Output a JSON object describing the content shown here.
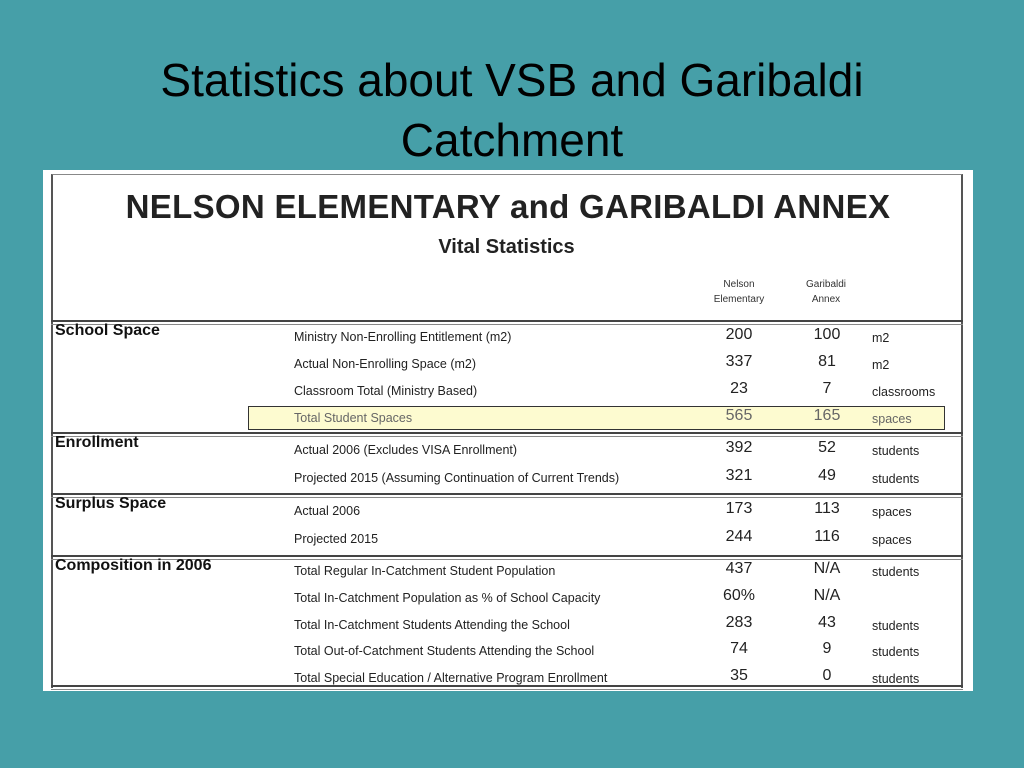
{
  "slide": {
    "title_line1": "Statistics about VSB and Garibaldi",
    "title_line2": "Catchment"
  },
  "document": {
    "title": "NELSON ELEMENTARY and GARIBALDI ANNEX",
    "subtitle": "Vital Statistics",
    "columns": {
      "nelson_line1": "Nelson",
      "nelson_line2": "Elementary",
      "garibaldi_line1": "Garibaldi",
      "garibaldi_line2": "Annex"
    },
    "sections": [
      {
        "label": "School Space",
        "rows": [
          {
            "desc": "Ministry Non-Enrolling Entitlement (m2)",
            "nelson": "200",
            "garibaldi": "100",
            "unit": "m2"
          },
          {
            "desc": "Actual Non-Enrolling Space (m2)",
            "nelson": "337",
            "garibaldi": "81",
            "unit": "m2"
          },
          {
            "desc": "Classroom Total (Ministry Based)",
            "nelson": "23",
            "garibaldi": "7",
            "unit": "classrooms"
          },
          {
            "desc": "Total Student Spaces",
            "nelson": "565",
            "garibaldi": "165",
            "unit": "spaces",
            "highlighted": true
          }
        ]
      },
      {
        "label": "Enrollment",
        "rows": [
          {
            "desc": "Actual 2006 (Excludes VISA Enrollment)",
            "nelson": "392",
            "garibaldi": "52",
            "unit": "students"
          },
          {
            "desc": "Projected 2015 (Assuming Continuation of Current Trends)",
            "nelson": "321",
            "garibaldi": "49",
            "unit": "students"
          }
        ]
      },
      {
        "label": "Surplus Space",
        "rows": [
          {
            "desc": "Actual 2006",
            "nelson": "173",
            "garibaldi": "113",
            "unit": "spaces"
          },
          {
            "desc": "Projected 2015",
            "nelson": "244",
            "garibaldi": "116",
            "unit": "spaces"
          }
        ]
      },
      {
        "label": "Composition in 2006",
        "rows": [
          {
            "desc": "Total Regular In-Catchment Student Population",
            "nelson": "437",
            "garibaldi": "N/A",
            "unit": "students"
          },
          {
            "desc": "Total In-Catchment Population as % of School Capacity",
            "nelson": "60%",
            "garibaldi": "N/A",
            "unit": ""
          },
          {
            "desc": "Total In-Catchment Students Attending the School",
            "nelson": "283",
            "garibaldi": "43",
            "unit": "students"
          },
          {
            "desc": "Total Out-of-Catchment Students Attending the School",
            "nelson": "74",
            "garibaldi": "9",
            "unit": "students"
          },
          {
            "desc": "Total Special Education / Alternative Program Enrollment",
            "nelson": "35",
            "garibaldi": "0",
            "unit": "students"
          }
        ]
      }
    ]
  },
  "colors": {
    "background": "#469fa8",
    "highlight": "#fdfbd0"
  }
}
